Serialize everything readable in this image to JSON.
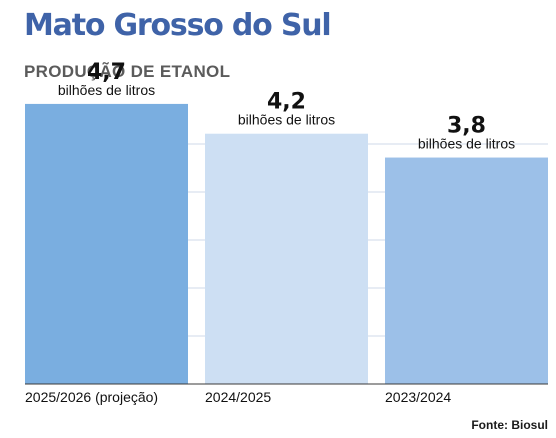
{
  "title": "Mato Grosso do Sul",
  "subtitle": "PRODUÇÃO DE ETANOL",
  "source": "Fonte: Biosul",
  "colors": {
    "title": "#3f63a8",
    "subtitle": "#5b5b5b",
    "grid": "#cfd9ea",
    "axis": "#3a3a3a",
    "bars": [
      "#7aaee0",
      "#cddff3",
      "#9cc0e8"
    ]
  },
  "chart_data": {
    "type": "bar",
    "title": "Mato Grosso do Sul",
    "subtitle": "PRODUÇÃO DE ETANOL",
    "categories": [
      "2025/2026 (projeção)",
      "2024/2025",
      "2023/2024"
    ],
    "values": [
      4.7,
      4.2,
      3.8
    ],
    "value_labels": [
      "4,7",
      "4,2",
      "3,8"
    ],
    "unit": "bilhões de litros",
    "ylim": [
      0,
      4.9
    ],
    "grid": true
  }
}
